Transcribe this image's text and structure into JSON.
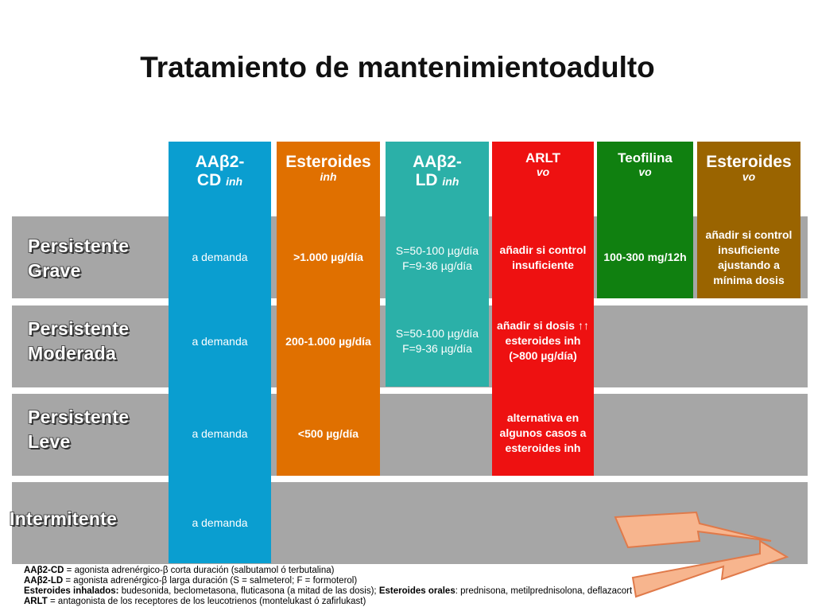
{
  "title": "Tratamiento de mantenimientoadulto",
  "rows": [
    {
      "line1": "Persistente",
      "line2": "Grave"
    },
    {
      "line1": "Persistente",
      "line2": "Moderada"
    },
    {
      "line1": "Persistente",
      "line2": "Leve"
    },
    {
      "line1": "Intermitente",
      "line2": ""
    }
  ],
  "columns": {
    "aab2cd": {
      "head": "AAβ2-",
      "head2": "CD",
      "sub": "inh",
      "color": "#0a9ed0",
      "cells": [
        "a demanda",
        "a demanda",
        "a demanda",
        "a demanda"
      ]
    },
    "esteroides_inh": {
      "head": "Esteroides",
      "sub": "inh",
      "color": "#e07000",
      "cells": [
        ">1.000 µg/día",
        "200-1.000 µg/día",
        "<500 µg/día"
      ]
    },
    "aab2ld": {
      "head": "AAβ2-",
      "head2": "LD",
      "sub": "inh",
      "color": "#2bb0a8",
      "cells": [
        "S=50-100 µg/día",
        "F=9-36 µg/día",
        "S=50-100 µg/día",
        "F=9-36 µg/día"
      ]
    },
    "arlt": {
      "head": "ARLT",
      "sub": "vo",
      "color": "#ee1111",
      "cells": [
        "añadir si control",
        "insuficiente",
        "añadir si dosis ↑↑",
        "esteroides inh",
        "(>800 µg/día)",
        "alternativa en",
        "algunos casos a",
        "esteroides inh"
      ]
    },
    "teofilina": {
      "head": "Teofilina",
      "sub": "vo",
      "color": "#108010",
      "cells": [
        "100-300 mg/12h"
      ]
    },
    "esteroides_vo": {
      "head": "Esteroides",
      "sub": "vo",
      "color": "#9a6400",
      "cells": [
        "añadir si control",
        "insuficiente",
        "ajustando a",
        "mínima dosis"
      ]
    }
  },
  "footnotes": [
    {
      "term": "AAβ2-CD",
      "text": " = agonista adrenérgico-β corta duración (salbutamol ó terbutalina)"
    },
    {
      "term": "AAβ2-LD",
      "text": " = agonista adrenérgico-β larga duración (S = salmeterol; F = formoterol)"
    },
    {
      "term": "Esteroides inhalados:",
      "text": " budesonida, beclometasona, fluticasona (a mitad de las dosis); ",
      "term2": "Esteroides orales",
      "text2": ": prednisona, metilprednisolona, deflazacort"
    },
    {
      "term": "ARLT",
      "text": " = antagonista de los receptores de los leucotrienos (montelukast ó zafirlukast)"
    }
  ],
  "colors": {
    "band": "#a6a6a6",
    "arrow_fill": "#f7b58e",
    "arrow_stroke": "#e07a4a"
  }
}
